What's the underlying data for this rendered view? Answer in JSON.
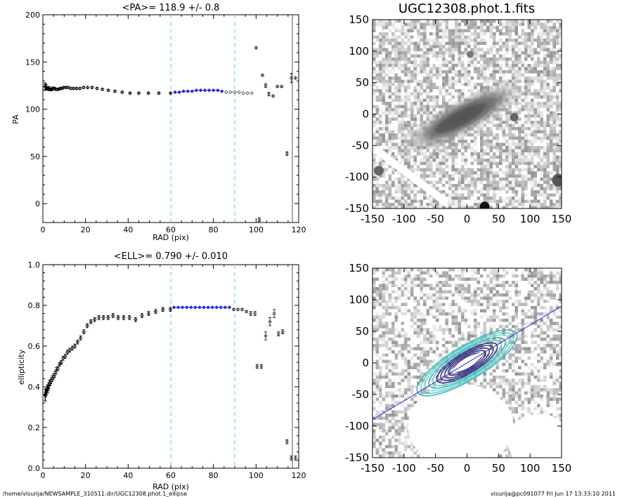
{
  "footer": {
    "path": "/home/visurija/NEWSAMPLE_310511.dir/UGC12308.phot.1_ellipse",
    "user_stamp": "visurija@pc091077  Fri Jun 17 13:33:10 2011"
  },
  "chart_data": [
    {
      "type": "scatter",
      "title": "<PA>= 118.9 +/-   0.8",
      "xlabel": "RAD (pix)",
      "ylabel": "PA",
      "xlim": [
        0,
        120
      ],
      "ylim": [
        -20,
        200
      ],
      "xticks": [
        0,
        20,
        40,
        60,
        80,
        100,
        120
      ],
      "yticks": [
        0,
        50,
        100,
        150,
        200
      ],
      "fit_range": [
        60,
        90
      ],
      "series": [
        {
          "x": [
            1,
            1.2,
            1.4,
            1.6,
            1.8,
            2,
            2.2,
            2.4,
            2.6,
            2.9,
            3.2,
            3.5,
            3.8,
            4.2,
            4.6,
            5.1,
            5.6,
            6.1,
            6.7,
            7.4,
            8.1,
            8.9,
            9.8,
            10.8,
            11.9,
            13.1,
            14.4,
            15.8,
            17.4,
            19.1,
            21,
            23.1,
            25.4,
            27.9,
            30.7,
            33.8,
            37.2,
            40.9,
            45,
            49.5,
            54.4,
            59.9
          ],
          "y": [
            124,
            124,
            123,
            123,
            122,
            122,
            122,
            122,
            122,
            122,
            121,
            121,
            121,
            121,
            122,
            122,
            122,
            121,
            121,
            121,
            122,
            122,
            123,
            123,
            123,
            122,
            122,
            122,
            122,
            123,
            123,
            123,
            122,
            121,
            120,
            119,
            118,
            117,
            117,
            117,
            117,
            117
          ],
          "err": [
            4,
            3,
            3,
            3,
            2,
            2,
            2,
            2,
            2,
            2,
            1.5,
            1.5,
            1.5,
            1.5,
            1.5,
            1,
            1,
            1,
            1,
            1,
            1,
            1,
            1,
            1,
            1,
            1,
            1,
            1,
            1,
            1,
            1,
            1,
            1,
            1,
            1,
            1,
            1,
            1,
            1,
            1,
            1,
            1
          ]
        },
        {
          "x": [
            62,
            64,
            66,
            68,
            70,
            72,
            74,
            76,
            78,
            80,
            82,
            84
          ],
          "y": [
            118,
            118,
            119,
            119,
            119,
            120,
            120,
            120,
            120,
            120,
            120,
            119
          ]
        },
        {
          "x": [
            86,
            88,
            90,
            92,
            94,
            96,
            98
          ],
          "y": [
            118,
            118,
            118,
            118,
            117,
            117,
            117
          ]
        },
        {
          "x": [
            100,
            101.5,
            103,
            104.5,
            106,
            108,
            110,
            112,
            114.5,
            116.5,
            118.5
          ],
          "y": [
            165,
            -17,
            136,
            125,
            116,
            114,
            124,
            124,
            53,
            133,
            133
          ],
          "err": [
            1,
            2,
            1,
            2,
            2,
            1,
            1,
            1,
            2,
            5,
            1
          ]
        }
      ]
    },
    {
      "type": "scatter",
      "title": "<ELL>= 0.790 +/-  0.010",
      "xlabel": "RAD (pix)",
      "ylabel": "ellipticity",
      "xlim": [
        0,
        120
      ],
      "ylim": [
        0.0,
        1.0
      ],
      "xticks": [
        0,
        20,
        40,
        60,
        80,
        100,
        120
      ],
      "yticks": [
        0.0,
        0.2,
        0.4,
        0.6,
        0.8,
        1.0
      ],
      "fit_range": [
        60,
        90
      ],
      "series": [
        {
          "x": [
            1,
            1.2,
            1.4,
            1.6,
            1.8,
            2,
            2.3,
            2.6,
            3,
            3.4,
            3.9,
            4.4,
            5,
            5.6,
            6.3,
            7,
            7.8,
            8.6,
            9.5,
            10.5,
            11.5,
            12.6,
            13.8,
            15,
            16.3,
            17.7,
            19.2,
            20.8,
            22.5,
            24.3,
            26.3,
            28.4,
            30.6,
            32.9,
            35.3,
            37.9,
            40.6,
            43.5,
            46.5,
            49.6,
            52.9,
            56.3,
            59.8
          ],
          "y": [
            0.36,
            0.36,
            0.37,
            0.38,
            0.38,
            0.39,
            0.39,
            0.4,
            0.41,
            0.42,
            0.43,
            0.44,
            0.45,
            0.46,
            0.48,
            0.49,
            0.51,
            0.52,
            0.54,
            0.55,
            0.57,
            0.58,
            0.59,
            0.6,
            0.62,
            0.64,
            0.67,
            0.7,
            0.72,
            0.73,
            0.74,
            0.74,
            0.74,
            0.75,
            0.74,
            0.74,
            0.74,
            0.73,
            0.75,
            0.76,
            0.77,
            0.78,
            0.78
          ],
          "err": [
            0.03,
            0.03,
            0.02,
            0.02,
            0.02,
            0.02,
            0.02,
            0.02,
            0.02,
            0.015,
            0.015,
            0.015,
            0.015,
            0.015,
            0.015,
            0.01,
            0.01,
            0.01,
            0.01,
            0.01,
            0.01,
            0.01,
            0.01,
            0.01,
            0.01,
            0.01,
            0.01,
            0.01,
            0.01,
            0.01,
            0.01,
            0.01,
            0.01,
            0.01,
            0.01,
            0.01,
            0.01,
            0.01,
            0.01,
            0.01,
            0.01,
            0.01,
            0.01
          ]
        },
        {
          "x": [
            61.5,
            63.5,
            65.5,
            67.5,
            69.5,
            71.5,
            73.5,
            75.5,
            77.5,
            79.5,
            81.5,
            83.5,
            85.5,
            87.5
          ],
          "y": [
            0.79,
            0.79,
            0.79,
            0.79,
            0.79,
            0.79,
            0.79,
            0.79,
            0.79,
            0.79,
            0.79,
            0.79,
            0.79,
            0.79
          ]
        },
        {
          "x": [
            89.5,
            91.5,
            93.5,
            95.5,
            97.5,
            99.5
          ],
          "y": [
            0.78,
            0.78,
            0.78,
            0.77,
            0.76,
            0.76
          ],
          "err": [
            0.005,
            0.005,
            0.005,
            0.005,
            0.01,
            0.01
          ]
        },
        {
          "x": [
            100.5,
            102.5,
            104.5,
            106.5,
            108.5,
            110.5,
            112.5,
            114.5,
            116.5,
            118.5
          ],
          "y": [
            0.5,
            0.5,
            0.65,
            0.72,
            0.76,
            0.66,
            0.67,
            0.13,
            0.05,
            0.05
          ],
          "err": [
            0.01,
            0.01,
            0.02,
            0.02,
            0.02,
            0.01,
            0.01,
            0.01,
            0.01,
            0.01
          ]
        }
      ]
    },
    {
      "type": "heatmap",
      "title": "UGC12308.phot.1.fits",
      "xlim": [
        -150,
        150
      ],
      "ylim": [
        -150,
        150
      ],
      "xticks": [
        -150,
        -100,
        -50,
        0,
        50,
        100,
        150
      ],
      "yticks": [
        -150,
        -100,
        -50,
        0,
        50,
        100,
        150
      ],
      "galaxy_pa_deg": 28
    },
    {
      "type": "heatmap",
      "title": "",
      "xlim": [
        -150,
        150
      ],
      "ylim": [
        -150,
        150
      ],
      "xticks": [
        -150,
        -100,
        -50,
        0,
        50,
        100,
        150
      ],
      "yticks": [
        -150,
        -100,
        -50,
        0,
        50,
        100,
        150
      ],
      "major_axis_line": {
        "x": [
          -150,
          150
        ],
        "y": [
          -90,
          90
        ]
      },
      "contour_colors": [
        "#3cb4b4",
        "#5ac8c8",
        "#7ad6d6",
        "#2a2a80",
        "#ffffff"
      ]
    }
  ]
}
